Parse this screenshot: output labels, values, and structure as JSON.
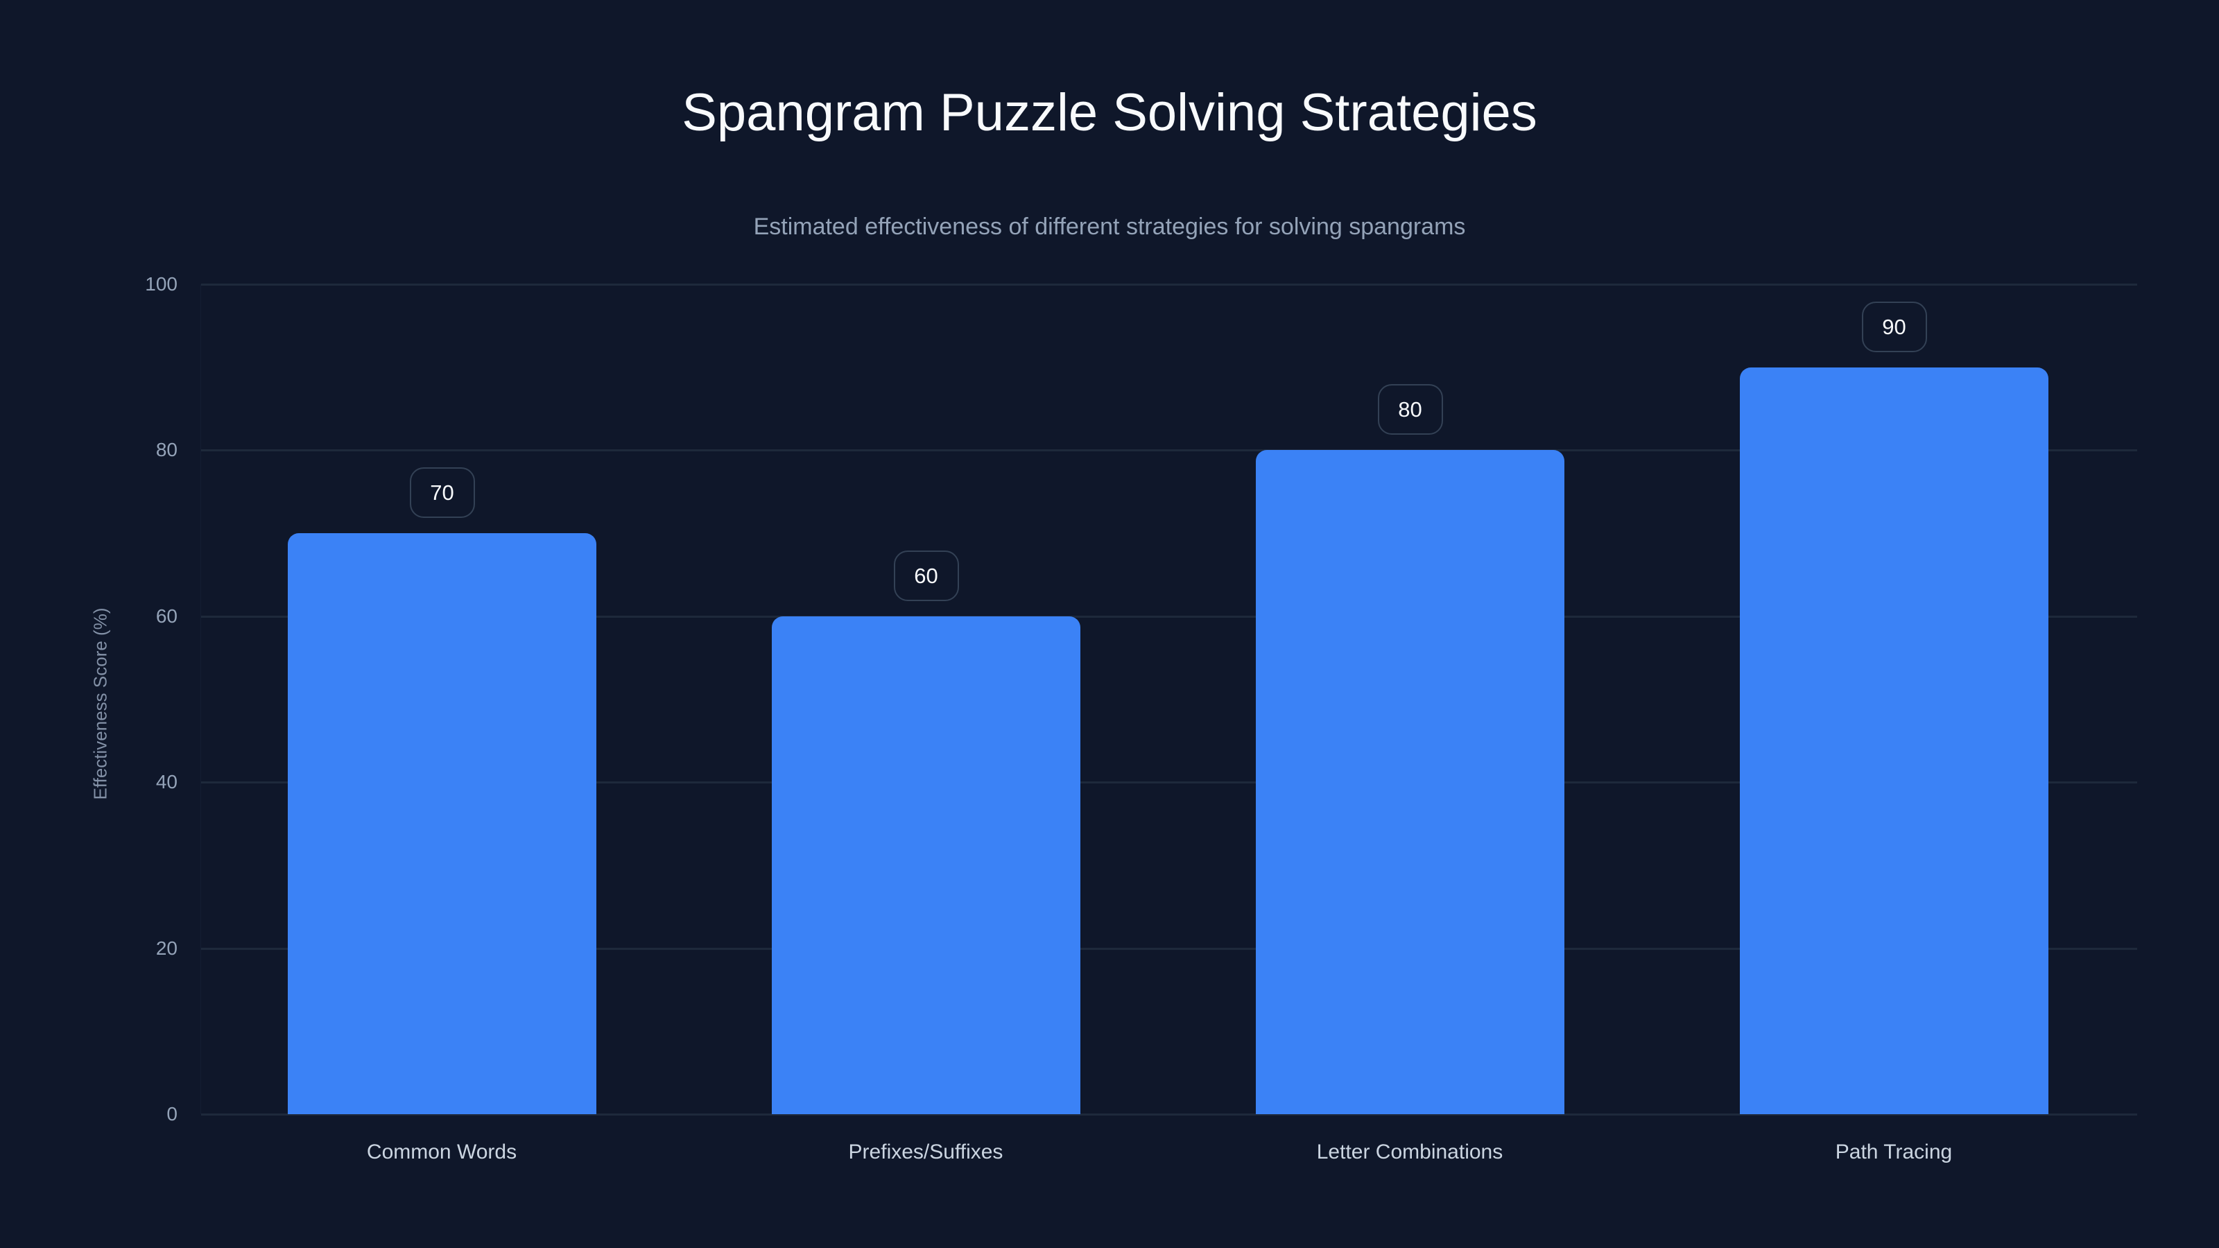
{
  "chart_data": {
    "type": "bar",
    "title": "Spangram Puzzle Solving Strategies",
    "subtitle": "Estimated effectiveness of different strategies for solving spangrams",
    "xlabel": "",
    "ylabel": "Effectiveness Score (%)",
    "categories": [
      "Common Words",
      "Prefixes/Suffixes",
      "Letter Combinations",
      "Path Tracing"
    ],
    "values": [
      70,
      60,
      80,
      90
    ],
    "value_labels": [
      "70",
      "60",
      "80",
      "90"
    ],
    "ylim": [
      0,
      100
    ],
    "yticks": [
      "0",
      "20",
      "40",
      "60",
      "80",
      "100"
    ],
    "grid": true,
    "legend": null,
    "colors": {
      "background": "#0f172a",
      "bar": "#3b82f6",
      "gridline": "#1e293b",
      "title": "#f8fafc",
      "subtitle": "#94a3b8",
      "tick_label": "#94a3b8",
      "category_label": "#cbd5e1",
      "value_label_border": "#334155"
    }
  }
}
